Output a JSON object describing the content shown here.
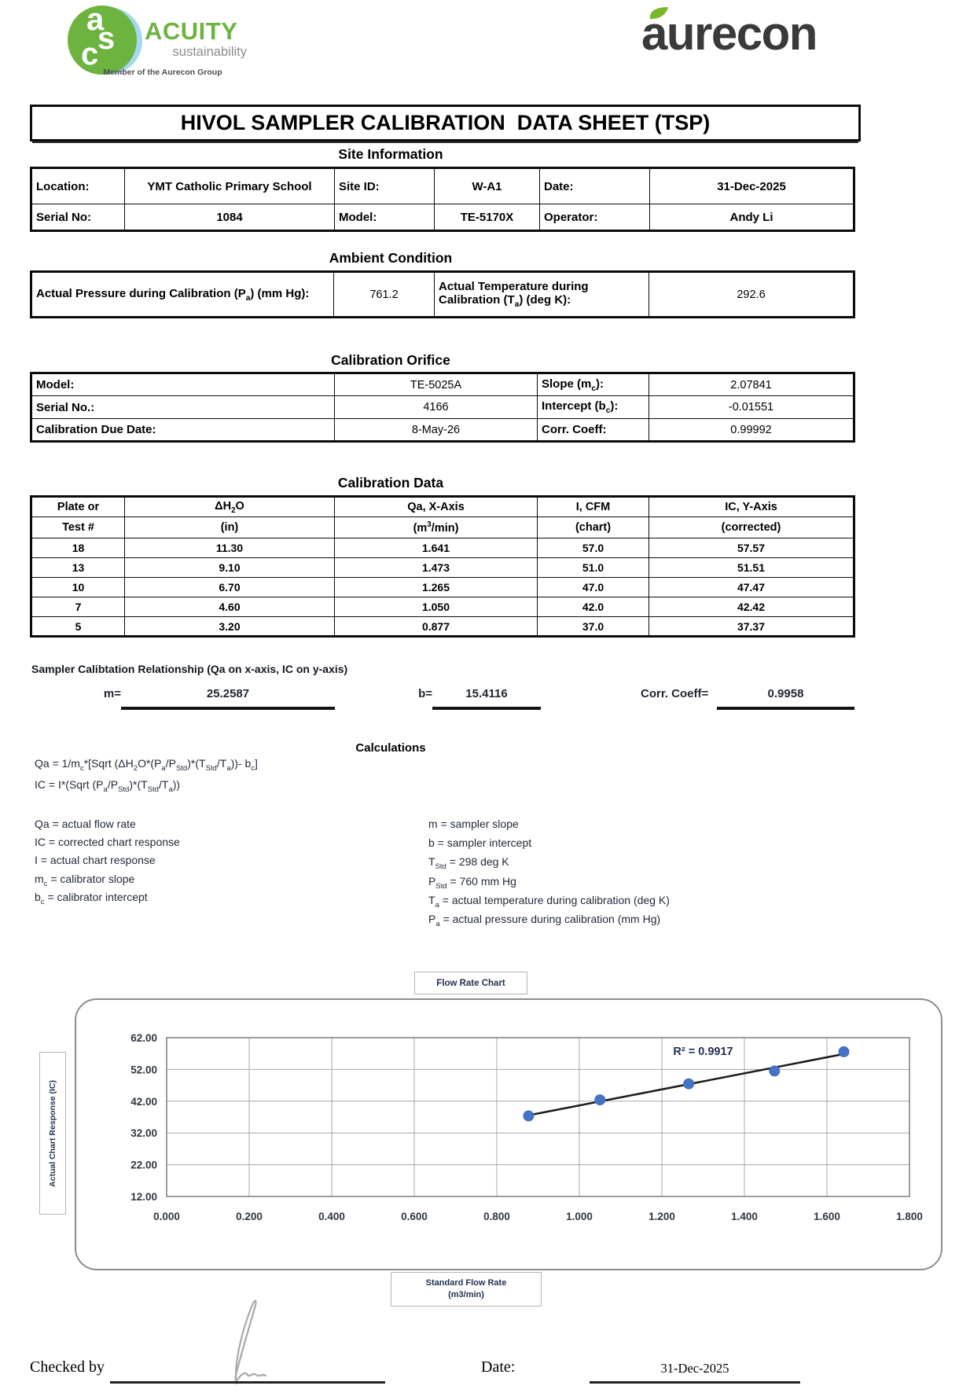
{
  "logos": {
    "acuity_monogram": [
      "a",
      "s",
      "c"
    ],
    "acuity_brand": "ACUITY",
    "acuity_sub": "sustainability",
    "acuity_member": "Member of the Aurecon Group",
    "aurecon_brand": "aurecon",
    "colors": {
      "acuity_green": "#6cb33f",
      "leaf_green": "#76b82a",
      "aurecon_charcoal": "#3a3a3c"
    }
  },
  "title": "HIVOL SAMPLER CALIBRATION  DATA SHEET (TSP)",
  "site_information": {
    "heading": "Site Information",
    "location_label": "Location:",
    "location_value": "YMT Catholic Primary School",
    "site_id_label": "Site ID:",
    "site_id_value": "W-A1",
    "date_label": "Date:",
    "date_value": "31-Dec-2025",
    "serial_label": "Serial No:",
    "serial_value": "1084",
    "model_label": "Model:",
    "model_value": "TE-5170X",
    "operator_label": "Operator:",
    "operator_value": "Andy Li"
  },
  "ambient_condition": {
    "heading": "Ambient Condition",
    "pressure_label": "Actual Pressure during Calibration (P<sub>a</sub>) (mm Hg):",
    "pressure_value": "761.2",
    "temperature_label": "Actual Temperature during Calibration (T<sub>a</sub>) (deg K):",
    "temperature_value": "292.6"
  },
  "calibration_orifice": {
    "heading": "Calibration Orifice",
    "model_label": "Model:",
    "model_value": "TE-5025A",
    "slope_label": "Slope (m<sub>c</sub>):",
    "slope_value": "2.07841",
    "serial_label": "Serial No.:",
    "serial_value": "4166",
    "intercept_label": "Intercept (b<sub>c</sub>):",
    "intercept_value": "-0.01551",
    "due_date_label": "Calibration Due Date:",
    "due_date_value": "8-May-26",
    "corr_label": "Corr. Coeff:",
    "corr_value": "0.99992"
  },
  "calibration_data": {
    "heading": "Calibration Data",
    "col1_h1": "Plate or",
    "col1_h2": "Test #",
    "col2_h1": "ΔH<sub>2</sub>O",
    "col2_h2": "(in)",
    "col3_h1": "Qa, X-Axis",
    "col3_h2": "(m<sup>3</sup>/min)",
    "col4_h1": "I, CFM",
    "col4_h2": "(chart)",
    "col5_h1": "IC, Y-Axis",
    "col5_h2": "(corrected)",
    "rows": [
      [
        "18",
        "11.30",
        "1.641",
        "57.0",
        "57.57"
      ],
      [
        "13",
        "9.10",
        "1.473",
        "51.0",
        "51.51"
      ],
      [
        "10",
        "6.70",
        "1.265",
        "47.0",
        "47.47"
      ],
      [
        "7",
        "4.60",
        "1.050",
        "42.0",
        "42.42"
      ],
      [
        "5",
        "3.20",
        "0.877",
        "37.0",
        "37.37"
      ]
    ]
  },
  "sampler_relationship": {
    "heading": "Sampler Calibtation Relationship (Qa on x-axis, IC on y-axis)",
    "m_label": "m=",
    "m_value": "25.2587",
    "b_label": "b=",
    "b_value": "15.4116",
    "corr_label": "Corr. Coeff=",
    "corr_value": "0.9958"
  },
  "calculations": {
    "heading": "Calculations",
    "formulas": [
      "Qa = 1/m<sub>c</sub>*[Sqrt (ΔH<sub>2</sub>O*(P<sub>a</sub>/P<sub>Std</sub>)*(T<sub>Std</sub>/T<sub>a</sub>))- b<sub>c</sub>]",
      "IC = I*(Sqrt (P<sub>a</sub>/P<sub>Std</sub>)*(T<sub>Std</sub>/T<sub>a</sub>))"
    ],
    "left_defs": [
      "Qa = actual flow rate",
      "IC = corrected chart response",
      "I = actual chart response",
      "m<sub>c</sub> = calibrator slope",
      "b<sub>c</sub> = calibrator intercept"
    ],
    "right_defs": [
      "m = sampler slope",
      "b  = sampler intercept",
      "T<sub>Std</sub> = 298 deg K",
      "P<sub>Std</sub> = 760 mm Hg",
      "T<sub>a</sub> = actual temperature during calibration (deg K)",
      "P<sub>a</sub> = actual pressure during calibration (mm Hg)"
    ]
  },
  "chart_data": {
    "type": "scatter",
    "title": "Flow Rate Chart",
    "ylabel": "Actual Chart Response (IC)",
    "xlabel_line1": "Standard Flow Rate",
    "xlabel_line2": "(m3/min)",
    "x": [
      0.877,
      1.05,
      1.265,
      1.473,
      1.641
    ],
    "y": [
      37.37,
      42.42,
      47.47,
      51.51,
      57.57
    ],
    "xlim": [
      0,
      1.8
    ],
    "ylim": [
      12,
      62
    ],
    "xticks": [
      "0.000",
      "0.200",
      "0.400",
      "0.600",
      "0.800",
      "1.000",
      "1.200",
      "1.400",
      "1.600",
      "1.800"
    ],
    "yticks": [
      "12.00",
      "22.00",
      "32.00",
      "42.00",
      "52.00",
      "62.00"
    ],
    "grid": true,
    "legend": "none",
    "trendline": {
      "slope": 25.2587,
      "intercept": 15.4116,
      "r2_label": "R² = 0.9917",
      "label_x": 1.3,
      "label_y": 56.5
    },
    "marker_color": "#4472c4",
    "line_color": "#1a1a1a"
  },
  "footer": {
    "checked_by_label": "Checked by",
    "date_label": "Date:",
    "date_value": "31-Dec-2025"
  }
}
